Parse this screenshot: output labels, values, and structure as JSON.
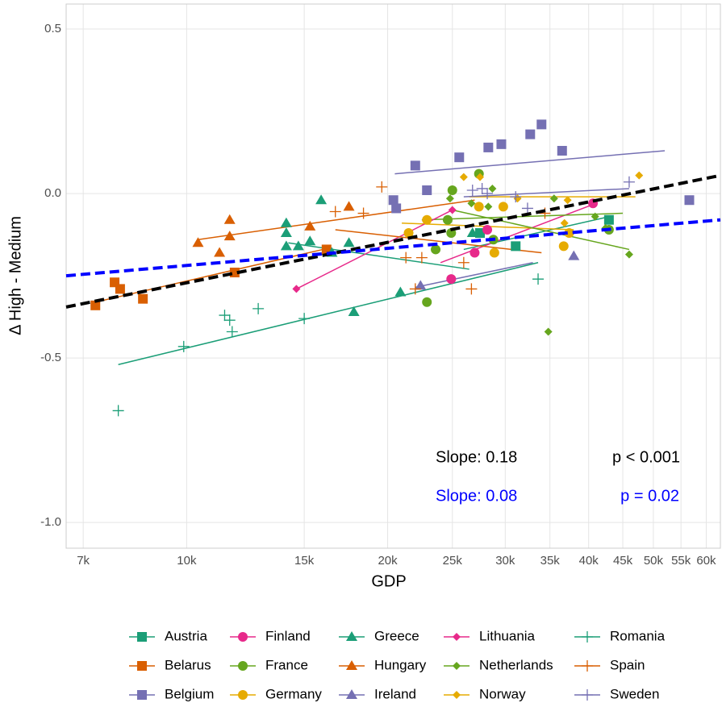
{
  "chart_data": {
    "type": "scatter",
    "x_label": "GDP",
    "y_label": "Δ High - Medium",
    "xscale": "log",
    "grid": true,
    "xlim": [
      6600,
      63000
    ],
    "ylim": [
      -1.078,
      0.576
    ],
    "xticks": [
      {
        "value": 7000,
        "label": "7k"
      },
      {
        "value": 10000,
        "label": "10k"
      },
      {
        "value": 15000,
        "label": "15k"
      },
      {
        "value": 20000,
        "label": "20k"
      },
      {
        "value": 25000,
        "label": "25k"
      },
      {
        "value": 30000,
        "label": "30k"
      },
      {
        "value": 35000,
        "label": "35k"
      },
      {
        "value": 40000,
        "label": "40k"
      },
      {
        "value": 45000,
        "label": "45k"
      },
      {
        "value": 50000,
        "label": "50k"
      },
      {
        "value": 55000,
        "label": "55k"
      },
      {
        "value": 60000,
        "label": "60k"
      }
    ],
    "yticks": [
      0.5,
      {
        "value": 0,
        "label": "0.0"
      },
      -0.5,
      {
        "value": -1,
        "label": "-1.0"
      }
    ],
    "series": [
      {
        "name": "Austria",
        "color": "#1b9e77",
        "marker": "square",
        "x": [
          27500,
          31100,
          42900
        ],
        "values": [
          -0.12,
          -0.16,
          -0.08
        ],
        "fit_x": [
          26000,
          43000
        ],
        "fit_y": [
          -0.17,
          -0.07
        ]
      },
      {
        "name": "Belarus",
        "color": "#d95f02",
        "marker": "square",
        "x": [
          7300,
          7800,
          7950,
          8600,
          11800,
          16200
        ],
        "values": [
          -0.34,
          -0.27,
          -0.29,
          -0.32,
          -0.24,
          -0.17
        ],
        "fit_x": [
          7300,
          16000
        ],
        "fit_y": [
          -0.33,
          -0.17
        ]
      },
      {
        "name": "Belgium",
        "color": "#7570b3",
        "marker": "square",
        "x": [
          22000,
          22900,
          20400,
          20600,
          25600,
          28300,
          29600,
          32700,
          34000,
          36500,
          56600
        ],
        "values": [
          0.085,
          0.01,
          -0.02,
          -0.045,
          0.11,
          0.14,
          0.15,
          0.18,
          0.21,
          0.13,
          -0.02
        ],
        "fit_x": [
          20500,
          52000
        ],
        "fit_y": [
          0.06,
          0.13
        ]
      },
      {
        "name": "Finland",
        "color": "#e7298a",
        "marker": "circle",
        "x": [
          24900,
          27000,
          28200,
          40600
        ],
        "values": [
          -0.26,
          -0.18,
          -0.11,
          -0.03
        ],
        "fit_x": [
          24000,
          41000
        ],
        "fit_y": [
          -0.21,
          -0.03
        ]
      },
      {
        "name": "France",
        "color": "#66a61e",
        "marker": "circle",
        "x": [
          22900,
          23600,
          24600,
          25000,
          24900,
          27400,
          28800,
          42900
        ],
        "values": [
          -0.33,
          -0.17,
          -0.08,
          0.01,
          -0.12,
          0.06,
          -0.14,
          -0.11
        ],
        "fit_x": [
          22500,
          45000
        ],
        "fit_y": [
          -0.08,
          -0.06
        ]
      },
      {
        "name": "Germany",
        "color": "#e6ab02",
        "marker": "circle",
        "x": [
          21500,
          22900,
          27400,
          29800,
          28900,
          36700,
          37400
        ],
        "values": [
          -0.12,
          -0.08,
          -0.04,
          -0.04,
          -0.18,
          -0.16,
          -0.12
        ],
        "fit_x": [
          21000,
          38000
        ],
        "fit_y": [
          -0.09,
          -0.11
        ]
      },
      {
        "name": "Greece",
        "color": "#1b9e77",
        "marker": "triangle",
        "x": [
          14100,
          14100,
          14100,
          14700,
          15300,
          15900,
          16500,
          17500,
          17800,
          20900,
          26800
        ],
        "values": [
          -0.09,
          -0.12,
          -0.16,
          -0.16,
          -0.145,
          -0.02,
          -0.18,
          -0.15,
          -0.36,
          -0.3,
          -0.12
        ],
        "fit_x": [
          14200,
          26500
        ],
        "fit_y": [
          -0.15,
          -0.23
        ]
      },
      {
        "name": "Hungary",
        "color": "#d95f02",
        "marker": "triangle",
        "x": [
          10400,
          11200,
          11600,
          11600,
          15300,
          17500
        ],
        "values": [
          -0.15,
          -0.18,
          -0.13,
          -0.08,
          -0.1,
          -0.04
        ],
        "fit_x": [
          10400,
          27000
        ],
        "fit_y": [
          -0.14,
          -0.02
        ]
      },
      {
        "name": "Ireland",
        "color": "#7570b3",
        "marker": "triangle",
        "x": [
          22400,
          38000
        ],
        "values": [
          -0.28,
          -0.19
        ],
        "fit_x": [
          22000,
          33000
        ],
        "fit_y": [
          -0.285,
          -0.21
        ]
      },
      {
        "name": "Lithuania",
        "color": "#e7298a",
        "marker": "diamond",
        "x": [
          14600,
          25000
        ],
        "values": [
          -0.29,
          -0.05
        ],
        "fit_x": [
          14600,
          25000
        ],
        "fit_y": [
          -0.29,
          -0.05
        ]
      },
      {
        "name": "Netherlands",
        "color": "#66a61e",
        "marker": "diamond",
        "x": [
          24800,
          26700,
          28700,
          28300,
          34800,
          35500,
          40900,
          42400,
          46000
        ],
        "values": [
          -0.015,
          -0.03,
          0.015,
          -0.04,
          -0.42,
          -0.015,
          -0.07,
          -0.105,
          -0.185
        ],
        "fit_x": [
          25000,
          46000
        ],
        "fit_y": [
          -0.05,
          -0.17
        ]
      },
      {
        "name": "Norway",
        "color": "#e6ab02",
        "marker": "diamond",
        "x": [
          26000,
          27500,
          31300,
          36800,
          37200,
          47600
        ],
        "values": [
          0.05,
          0.05,
          -0.015,
          -0.09,
          -0.02,
          0.055
        ],
        "fit_x": [
          26500,
          47000
        ],
        "fit_y": [
          -0.01,
          -0.01
        ]
      },
      {
        "name": "Romania",
        "color": "#1b9e77",
        "marker": "plus",
        "x": [
          7900,
          9900,
          11400,
          11600,
          11700,
          12800,
          15000,
          33600
        ],
        "values": [
          -0.66,
          -0.465,
          -0.37,
          -0.385,
          -0.42,
          -0.35,
          -0.38,
          -0.26
        ],
        "fit_x": [
          7900,
          33600
        ],
        "fit_y": [
          -0.52,
          -0.21
        ]
      },
      {
        "name": "Spain",
        "color": "#d95f02",
        "marker": "plus",
        "x": [
          16700,
          18400,
          19600,
          21300,
          22500,
          22000,
          26000,
          26700,
          34400
        ],
        "values": [
          -0.055,
          -0.06,
          0.02,
          -0.195,
          -0.195,
          -0.29,
          -0.21,
          -0.29,
          -0.06
        ],
        "fit_x": [
          16700,
          34000
        ],
        "fit_y": [
          -0.11,
          -0.18
        ]
      },
      {
        "name": "Sweden",
        "color": "#7570b3",
        "marker": "plus",
        "x": [
          26800,
          27700,
          28200,
          31100,
          32400,
          46000
        ],
        "values": [
          0.01,
          0.015,
          0,
          -0.01,
          -0.045,
          0.035
        ],
        "fit_x": [
          26000,
          46000
        ],
        "fit_y": [
          -0.01,
          0.015
        ]
      }
    ],
    "trend_lines": [
      {
        "color": "#000000",
        "x": [
          6600,
          63000
        ],
        "values": [
          -0.345,
          0.055
        ]
      },
      {
        "color": "#0000ff",
        "x": [
          6600,
          63000
        ],
        "values": [
          -0.25,
          -0.08
        ]
      }
    ],
    "annotations": [
      {
        "text": "Slope: 0.18",
        "color": "#000000"
      },
      {
        "text": "p < 0.001",
        "color": "#000000"
      },
      {
        "text": "Slope: 0.08",
        "color": "#0000ff"
      },
      {
        "text": "p =  0.02",
        "color": "#0000ff"
      }
    ]
  }
}
